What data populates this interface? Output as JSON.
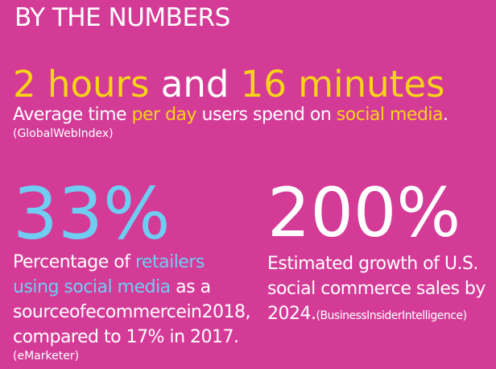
{
  "title": "BY THE NUMBERS",
  "stats": [
    {
      "headline": [
        {
          "text": "2 hours ",
          "color": "#f7d417"
        },
        {
          "text": "and ",
          "color": "#ffffff"
        },
        {
          "text": "16 minutes",
          "color": "#f7d417"
        }
      ],
      "lines": [
        [
          {
            "text": "Average time ",
            "color": "#ffffff"
          },
          {
            "text": "per day",
            "color": "#f7d417"
          },
          {
            "text": " users spend on ",
            "color": "#ffffff"
          },
          {
            "text": "social media",
            "color": "#f7d417"
          },
          {
            "text": ".",
            "color": "#ffffff"
          }
        ]
      ],
      "source": "(GlobalWebIndex)"
    },
    {
      "headline": [
        {
          "text": "33%",
          "color": "#6fcdf2"
        }
      ],
      "lines": [
        [
          {
            "text": "Percentage of ",
            "color": "#ffffff"
          },
          {
            "text": "retailers",
            "color": "#6fcdf2"
          }
        ],
        [
          {
            "text": "using social media",
            "color": "#6fcdf2"
          },
          {
            "text": " as a",
            "color": "#ffffff"
          }
        ],
        [
          {
            "text": "sourceofecommercein2018,",
            "color": "#ffffff"
          }
        ],
        [
          {
            "text": "compared to 17% in 2017.",
            "color": "#ffffff"
          }
        ]
      ],
      "source": "(eMarketer)"
    },
    {
      "headline": [
        {
          "text": "200%",
          "color": "#ffffff"
        }
      ],
      "lines": [
        [
          {
            "text": "Estimated growth of U.S.",
            "color": "#ffffff"
          }
        ],
        [
          {
            "text": "social commerce sales by",
            "color": "#ffffff"
          }
        ],
        [
          {
            "text": "2024.",
            "color": "#ffffff"
          }
        ]
      ],
      "source": "(BusinessInsiderIntelligence)"
    }
  ]
}
